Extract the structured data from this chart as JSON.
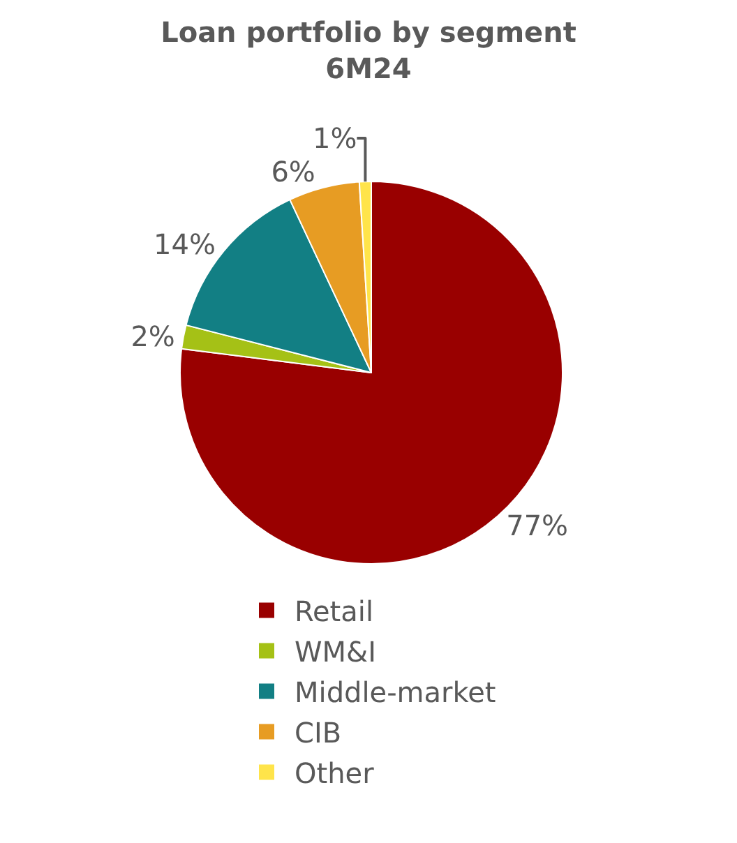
{
  "chart_data": {
    "type": "pie",
    "title": "Loan portfolio by segment\n6M24",
    "categories": [
      "Retail",
      "WM&I",
      "Middle-market",
      "CIB",
      "Other"
    ],
    "values": [
      77,
      2,
      14,
      6,
      1
    ],
    "colors": [
      "#990000",
      "#a5c116",
      "#127f84",
      "#e79c23",
      "#ffe44a"
    ],
    "value_labels": [
      "77%",
      "2%",
      "14%",
      "6%",
      "1%"
    ],
    "legend": "bottom"
  }
}
